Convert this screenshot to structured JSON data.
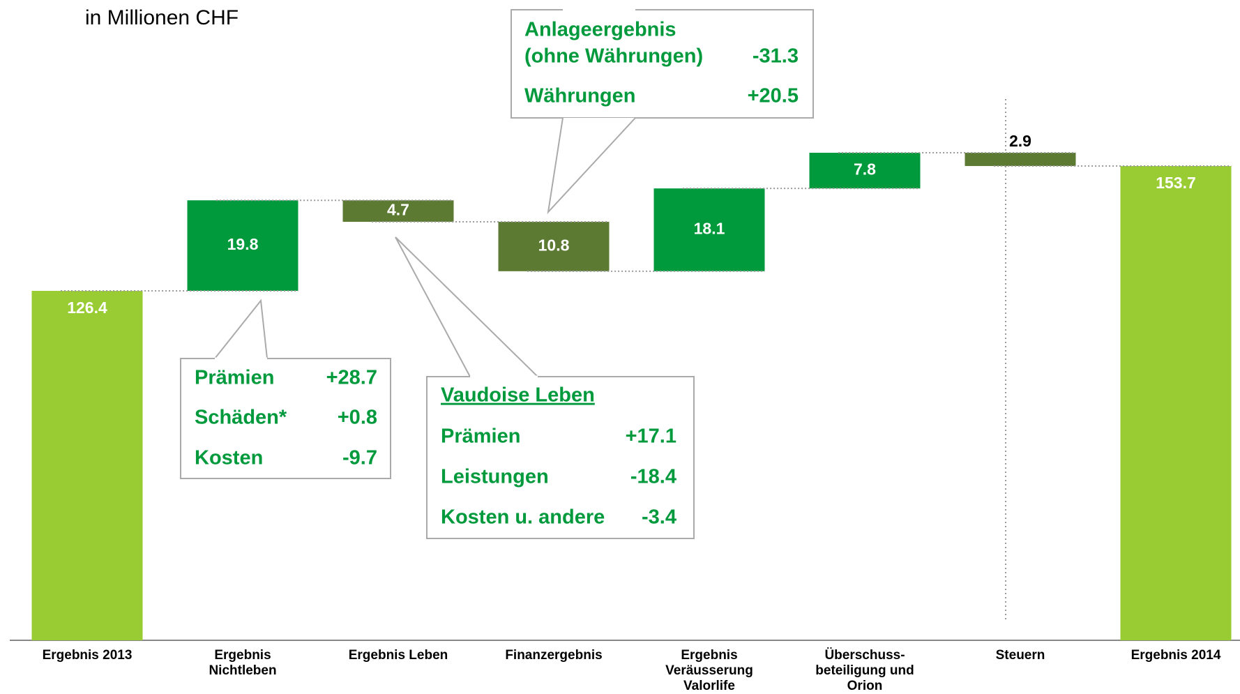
{
  "chart_data": {
    "type": "waterfall",
    "subtitle": "in Millionen CHF",
    "categories": [
      "Ergebnis 2013",
      "Ergebnis\nNichtleben",
      "Ergebnis Leben",
      "Finanzergebnis",
      "Ergebnis\nVeräusserung\nValorlife",
      "Überschuss-\nbeteiligung und\nOrion",
      "Steuern",
      "Ergebnis 2014"
    ],
    "values": [
      126.4,
      19.8,
      -4.7,
      -10.8,
      18.1,
      7.8,
      -2.9,
      153.7
    ],
    "value_labels": [
      "126.4",
      "19.8",
      "4.7",
      "10.8",
      "18.1",
      "7.8",
      "2.9",
      "153.7"
    ],
    "is_total": [
      true,
      false,
      false,
      false,
      false,
      false,
      false,
      true
    ],
    "colors": [
      "#99cc33",
      "#009a3d",
      "#5d7a33",
      "#5d7a33",
      "#009a3d",
      "#009a3d",
      "#5d7a33",
      "#99cc33"
    ],
    "ylim": [
      50,
      190
    ],
    "annotations": [
      {
        "lines": [
          {
            "label": "Prämien",
            "value": "+28.7"
          },
          {
            "label": "Schäden*",
            "value": "+0.8"
          },
          {
            "label": "Kosten",
            "value": "-9.7"
          }
        ]
      },
      {
        "title": "Vaudoise Leben",
        "lines": [
          {
            "label": "Prämien",
            "value": "+17.1"
          },
          {
            "label": "Leistungen",
            "value": "-18.4"
          },
          {
            "label": "Kosten u. andere",
            "value": "-3.4"
          }
        ]
      },
      {
        "title": "Anlageergebnis",
        "lines": [
          {
            "label": "(ohne Währungen)",
            "value": "-31.3"
          },
          {
            "label": "Währungen",
            "value": "+20.5"
          }
        ]
      }
    ]
  }
}
